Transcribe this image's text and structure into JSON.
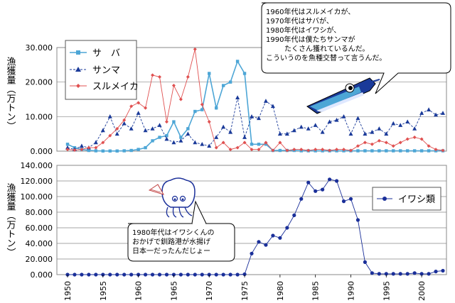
{
  "chart_data": [
    {
      "type": "line",
      "ylabel": "漁獲量（万トン）",
      "ylim": [
        0,
        30000
      ],
      "yticks": [
        "0.000",
        "10.000",
        "20.000",
        "30.000"
      ],
      "xlim": [
        1950,
        2003
      ],
      "grid": "horizontal",
      "legend_position": "top-left",
      "series": [
        {
          "name": "サ　バ",
          "color": "#4da6d6",
          "marker": "square",
          "x": [
            1950,
            1951,
            1952,
            1953,
            1954,
            1955,
            1956,
            1957,
            1958,
            1959,
            1960,
            1961,
            1962,
            1963,
            1964,
            1965,
            1966,
            1967,
            1968,
            1969,
            1970,
            1971,
            1972,
            1973,
            1974,
            1975,
            1976,
            1977,
            1978,
            1979,
            1980,
            1981,
            1982,
            1983,
            1984,
            1985,
            1986,
            1987,
            1988,
            1989,
            1990,
            1991,
            1992,
            1993,
            1994,
            1995,
            1996,
            1997,
            1998,
            1999,
            2000,
            2001,
            2002,
            2003
          ],
          "values": [
            2000,
            1000,
            500,
            200,
            100,
            50,
            50,
            50,
            100,
            200,
            500,
            1000,
            3000,
            4000,
            4500,
            8500,
            4000,
            6500,
            11500,
            12000,
            22500,
            12500,
            19000,
            20000,
            26000,
            22500,
            2000,
            2000,
            2000,
            200,
            200,
            200,
            200,
            100,
            100,
            100,
            100,
            100,
            100,
            100,
            100,
            100,
            100,
            100,
            100,
            100,
            100,
            100,
            100,
            100,
            100,
            100,
            100,
            100
          ]
        },
        {
          "name": "サンマ",
          "color": "#1a3a99",
          "marker": "triangle",
          "dashed": true,
          "x": [
            1950,
            1951,
            1952,
            1953,
            1954,
            1955,
            1956,
            1957,
            1958,
            1959,
            1960,
            1961,
            1962,
            1963,
            1964,
            1965,
            1966,
            1967,
            1968,
            1969,
            1970,
            1971,
            1972,
            1973,
            1974,
            1975,
            1976,
            1977,
            1978,
            1979,
            1980,
            1981,
            1982,
            1983,
            1984,
            1985,
            1986,
            1987,
            1988,
            1989,
            1990,
            1991,
            1992,
            1993,
            1994,
            1995,
            1996,
            1997,
            1998,
            1999,
            2000,
            2001,
            2002,
            2003
          ],
          "values": [
            1000,
            500,
            1500,
            1000,
            2500,
            6000,
            10000,
            5000,
            8000,
            6500,
            11000,
            6000,
            6500,
            7500,
            3500,
            2500,
            3000,
            5000,
            2500,
            2000,
            1500,
            4000,
            7000,
            5500,
            15500,
            4000,
            10000,
            9500,
            14500,
            13000,
            5000,
            5000,
            6000,
            7000,
            6500,
            7500,
            5500,
            8500,
            9000,
            10000,
            5000,
            9500,
            5000,
            5500,
            6500,
            5000,
            8000,
            7500,
            8500,
            6500,
            11000,
            12000,
            10500,
            11000
          ]
        },
        {
          "name": "スルメイカ",
          "color": "#e05050",
          "marker": "diamond",
          "dashed": false,
          "x": [
            1950,
            1951,
            1952,
            1953,
            1954,
            1955,
            1956,
            1957,
            1958,
            1959,
            1960,
            1961,
            1962,
            1963,
            1964,
            1965,
            1966,
            1967,
            1968,
            1969,
            1970,
            1971,
            1972,
            1973,
            1974,
            1975,
            1976,
            1977,
            1978,
            1979,
            1980,
            1981,
            1982,
            1983,
            1984,
            1985,
            1986,
            1987,
            1988,
            1989,
            1990,
            1991,
            1992,
            1993,
            1994,
            1995,
            1996,
            1997,
            1998,
            1999,
            2000,
            2001,
            2002,
            2003
          ],
          "values": [
            500,
            300,
            500,
            1000,
            1000,
            2500,
            4500,
            6500,
            9000,
            13000,
            14000,
            12500,
            22000,
            21500,
            8500,
            19000,
            15000,
            21500,
            29500,
            13500,
            8500,
            1000,
            2500,
            500,
            1000,
            2500,
            500,
            500,
            2500,
            200,
            2500,
            200,
            500,
            500,
            200,
            500,
            500,
            200,
            500,
            500,
            200,
            1500,
            2500,
            2000,
            3000,
            2500,
            1500,
            2500,
            3500,
            4000,
            3500,
            1500,
            500,
            200
          ]
        }
      ]
    },
    {
      "type": "line",
      "ylabel": "漁獲量（万トン）",
      "ylim": [
        0,
        140000
      ],
      "yticks": [
        "0.000",
        "20.000",
        "40.000",
        "60.000",
        "80.000",
        "100.000",
        "120.000",
        "140.000"
      ],
      "xlim": [
        1950,
        2003
      ],
      "xticks": [
        "1950",
        "1955",
        "1960",
        "1965",
        "1970",
        "1975",
        "1980",
        "1985",
        "1990",
        "1995",
        "2000"
      ],
      "grid": "horizontal",
      "legend_position": "right",
      "series": [
        {
          "name": "イワシ類",
          "color": "#1a2f99",
          "marker": "circle",
          "x": [
            1950,
            1951,
            1952,
            1953,
            1954,
            1955,
            1956,
            1957,
            1958,
            1959,
            1960,
            1961,
            1962,
            1963,
            1964,
            1965,
            1966,
            1967,
            1968,
            1969,
            1970,
            1971,
            1972,
            1973,
            1974,
            1975,
            1976,
            1977,
            1978,
            1979,
            1980,
            1981,
            1982,
            1983,
            1984,
            1985,
            1986,
            1987,
            1988,
            1989,
            1990,
            1991,
            1992,
            1993,
            1994,
            1995,
            1996,
            1997,
            1998,
            1999,
            2000,
            2001,
            2002,
            2003
          ],
          "values": [
            0,
            0,
            0,
            0,
            0,
            0,
            0,
            0,
            0,
            0,
            0,
            0,
            0,
            0,
            0,
            0,
            0,
            0,
            0,
            0,
            0,
            0,
            0,
            0,
            0,
            500,
            27000,
            42000,
            38000,
            50000,
            47000,
            60000,
            76000,
            97000,
            118000,
            107000,
            109000,
            122000,
            120000,
            94000,
            97000,
            70000,
            16000,
            2000,
            1000,
            1000,
            1000,
            1000,
            1000,
            2000,
            1000,
            1000,
            4000,
            5000
          ]
        }
      ]
    }
  ],
  "notes": {
    "top_bubble": [
      "1960年代はスルメイカが、",
      "1970年代はサバが、",
      "1980年代はイワシが、",
      "1990年代は僕たちサンマが",
      "たくさん獲れているんだ。",
      "こういうのを魚種交替って言うんだ。"
    ],
    "bottom_bubble": [
      "1980年代はイワシくんの",
      "おかげで釧路港が水揚げ",
      "日本一だったんだじょー"
    ]
  }
}
